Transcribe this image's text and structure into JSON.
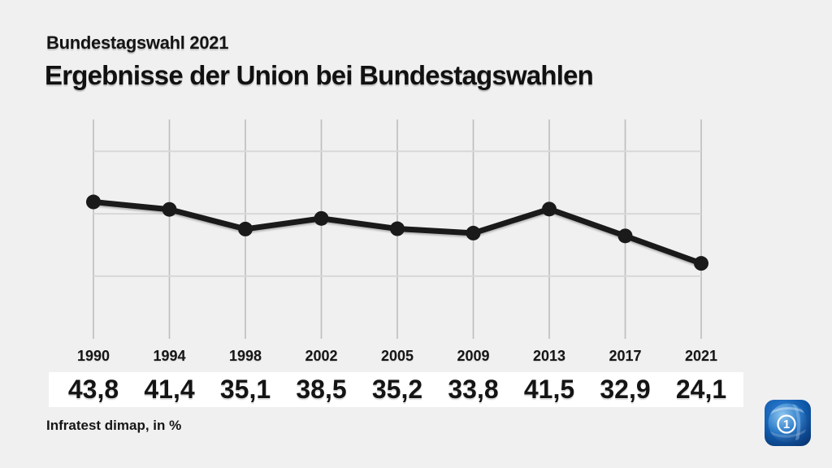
{
  "page": {
    "kicker": "Bundestagswahl 2021",
    "title": "Ergebnisse der Union bei Bundestagswahlen",
    "source": "Infratest dimap, in %"
  },
  "colors": {
    "background": "#f0f0f0",
    "line": "#1a1a1a",
    "grid_vertical": "#bdbdbd",
    "grid_horizontal": "#d8d8d8",
    "value_strip": "#ffffff",
    "text": "#141414"
  },
  "chart_data": {
    "type": "line",
    "title": "Ergebnisse der Union bei Bundestagswahlen",
    "subtitle": "Bundestagswahl 2021",
    "source": "Infratest dimap, in %",
    "unit": "%",
    "x": [
      "1990",
      "1994",
      "1998",
      "2002",
      "2005",
      "2009",
      "2013",
      "2017",
      "2021"
    ],
    "values": [
      43.8,
      41.4,
      35.1,
      38.5,
      35.2,
      33.8,
      41.5,
      32.9,
      24.1
    ],
    "value_labels": [
      "43,8",
      "41,4",
      "35,1",
      "38,5",
      "35,2",
      "33,8",
      "41,5",
      "32,9",
      "24,1"
    ],
    "xlabel": "",
    "ylabel": "",
    "ylim": [
      0,
      70
    ],
    "gridlines_percent": [
      20,
      40,
      60
    ],
    "grid": true,
    "legend": false
  },
  "logo": {
    "name": "Das Erste",
    "numeral": "1",
    "colors": {
      "tile_light": "#2f80d6",
      "tile_mid": "#0f58a8",
      "tile_dark": "#092c64",
      "globe_light": "#8ec6f0",
      "globe_mid": "#2d7cc9",
      "globe_dark": "#0b3a7d"
    }
  }
}
